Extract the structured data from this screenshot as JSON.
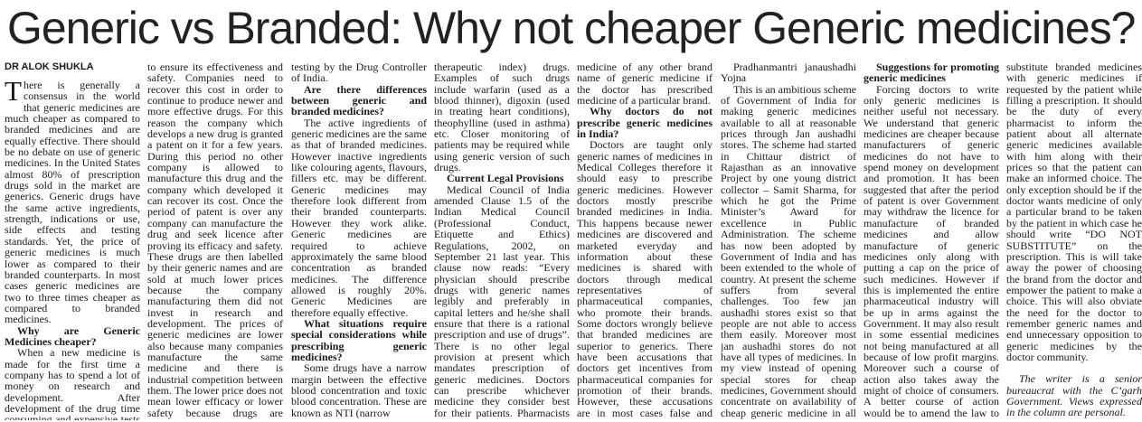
{
  "headline": "Generic vs Branded: Why not cheaper Generic medicines?",
  "byline": "DR ALOK SHUKLA",
  "columns": [
    [
      {
        "text": "There is generally a consensus in the world that generic medicines are much cheaper as compared to branded medicines and are equally effective. There should be no debate on use of generic medicines. In the United States almost 80% of prescription drugs sold in the market are generics. Generic drugs have the same active ingredients, strength, indications or use, side effects and testing standards. Yet, the price of generic medicines is much lower as compared to their branded counterparts. In most cases generic medicines are two to three times cheaper as compared to branded medicines."
      },
      {
        "heading": "Why are Generic Medicines cheaper?"
      },
      {
        "text": "When a new medicine is made for the first time a company has to spend a lot of money on research and development. After development of the drug time consuming and expensive tests are conducted"
      }
    ],
    [
      {
        "text": "to ensure its effectiveness and safety. Companies need to recover this cost in order to continue to produce newer and more effective drugs. For this reason the company which develops a new drug is granted a patent on it for a few years. During this period no other company is allowed to manufacture this drug and the company which developed it can recover its cost. Once the period of patent is over any company can manufacture the drug and seek licence after proving its efficacy and safety. These drugs are then labelled by their generic names and are sold at much lower prices because the company manufacturing them did not invest in research and development. The prices of generic medicines are lower also because many companies manufacture the same medicine and there is industrial competition between them. The lower price does not mean lower efficacy or lower safety because drugs are licensed only after rigorous"
      }
    ],
    [
      {
        "text": "testing by the Drug Controller of India."
      },
      {
        "heading": "Are there differences between generic and branded medicines?"
      },
      {
        "text": "The active ingredients of generic medicines are the same as that of branded medicines. However inactive ingredients like colouring agents, flavours, fillers etc. may be different. Generic medicines may therefore look different from their branded counterparts. However they work alike. Generic medicines are required to achieve approximately the same blood concentration as branded medicines. The difference allowed is roughly 20%. Generic Medicines are therefore equally effective."
      },
      {
        "heading": "What situations require special considerations while prescribing generic medicines?"
      },
      {
        "text": "Some drugs have a narrow margin between the effective blood concentration and toxic blood concentration. These are known as NTI (narrow"
      }
    ],
    [
      {
        "text": "therapeutic index) drugs. Examples of such drugs include warfarin (used as a blood thinner), digoxin (used in treating heart conditions), theophylline (used in asthma) etc. Closer monitoring of patients may be required while using generic version of such drugs."
      },
      {
        "heading": "Current Legal Provisions"
      },
      {
        "text": "Medical Council of India amended Clause 1.5 of the Indian Medical Council (Professional Conduct, Etiquette and Ethics) Regulations, 2002, on September 21 last year. This clause now reads: “Every physician should prescribe drugs with generic names legibly and preferably in capital letters and he/she shall ensure that there is a rational prescription and use of drugs”. There is no other legal provision at present which mandates prescription of generic medicines. Doctors can prescribe whichever medicine they consider best for their patients. Pharmacists have no authority to dispense"
      }
    ],
    [
      {
        "text": "medicine of any other brand name of generic medicine if the doctor has prescribed medicine of a particular brand."
      },
      {
        "heading": "Why doctors do not prescribe generic medicines in India?"
      },
      {
        "text": "Doctors are taught only generic names of medicines in Medical Colleges therefore it should easy to prescribe generic medicines. However doctors mostly prescribe branded medicines in India. This happens because newer medicines are discovered and marketed everyday and information about these medicines is shared with doctors through medical representatives of pharmaceutical companies, who promote their brands. Some doctors wrongly believe that branded medicines are superior to generics. There have been accusations that doctors get incentives from pharmaceutical companies for promotion of their brands. However, these accusations are in most cases false and unfounded."
      }
    ],
    [
      {
        "subheading": "Pradhanmantri janaushadhi Yojna"
      },
      {
        "text": "This is an ambitious scheme of Government of India for making generic medicines available to all at reasonable prices through Jan aushadhi stores. The scheme had started in Chittaur district of Rajasthan as an innovative Project by one young district collector – Samit Sharma, for which he got the Prime Minister’s Award for excellence in Public Administration. The scheme has now been adopted by Government of India and has been extended to the whole of country. At present the scheme suffers from several challenges. Too few jan aushadhi stores exist so that people are not able to access them easily. Moreover most jan aushadhi stores do not have all types of medicines. In my view instead of opening special stores for cheap medicines, Government should concentrate on availability of cheap generic medicine in all medical stores."
      }
    ],
    [
      {
        "heading": "Suggestions for promoting generic medicines"
      },
      {
        "text": "Forcing doctors to write only generic medicines is neither useful not necessary. We understand that generic medicines are cheaper because manufacturers of generic medicines do not have to spend money on development and promotion. It has been suggested that after the period of patent is over Government may withdraw the licence for manufacture of branded medicines and allow manufacture of generic medicines only along with putting a cap on the price of such medicines. However if this is implemented the entire pharmaceutical industry will be up in arms against the Government. It may also result in some essential medicines not being manufactured at all because of low profit margins. Moreover such a course of action also takes away the might of choice of consumers. A better course of action would be to amend the law to allow pharmacists to"
      }
    ],
    [
      {
        "text": "substitute branded medicines with generic medicines if requested by the patient while filling a prescription. It should be the duty of every pharmacist to inform the patient about all alternate generic medicines available with him along with their prices so that the patient can make an informed choice. The only exception should be if the doctor wants medicine of only a particular brand to be taken by the patient in which case he should write “DO NOT SUBSTITUTE” on the prescription. This is will take away the power of choosing the brand from the doctor and empower the patient to make a choice. This will also obviate the need for the doctor to remember generic names and end unnecessary opposition to generic medicines by the doctor community."
      },
      {
        "note": "The writer is a senior bureaucrat with the C’garh Government. Views expressed in the column are personal."
      }
    ]
  ]
}
